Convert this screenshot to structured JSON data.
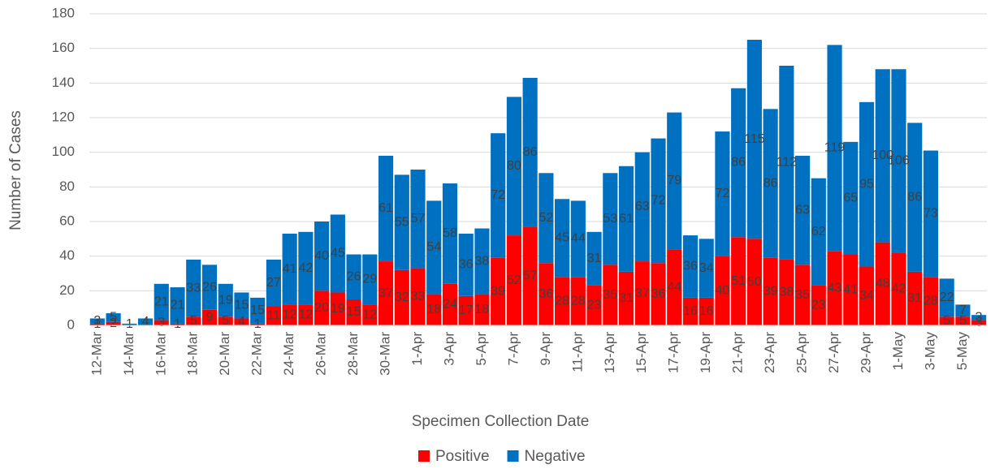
{
  "chart_data": {
    "type": "stacked_bar",
    "x_label": "Specimen Collection Date",
    "y_label": "Number of Cases",
    "categories": [
      "12-Mar",
      null,
      "14-Mar",
      null,
      "16-Mar",
      null,
      "18-Mar",
      null,
      "20-Mar",
      null,
      "22-Mar",
      null,
      "24-Mar",
      null,
      "26-Mar",
      null,
      "28-Mar",
      null,
      "30-Mar",
      null,
      "1-Apr",
      null,
      "3-Apr",
      null,
      "5-Apr",
      null,
      "7-Apr",
      null,
      "9-Apr",
      null,
      "11-Apr",
      null,
      "13-Apr",
      null,
      "15-Apr",
      null,
      "17-Apr",
      null,
      "19-Apr",
      null,
      "21-Apr",
      null,
      "23-Apr",
      null,
      "25-Apr",
      null,
      "27-Apr",
      null,
      "29-Apr",
      null,
      "1-May",
      null,
      "3-May",
      null,
      "5-May",
      null
    ],
    "series": [
      {
        "name": "Positive",
        "color": "#ff0000",
        "values": [
          1,
          2,
          0,
          0,
          3,
          1,
          5,
          9,
          5,
          4,
          1,
          11,
          12,
          12,
          20,
          19,
          15,
          12,
          37,
          32,
          33,
          18,
          24,
          17,
          18,
          39,
          52,
          57,
          36,
          28,
          28,
          23,
          35,
          31,
          37,
          36,
          44,
          16,
          16,
          40,
          51,
          50,
          39,
          38,
          35,
          23,
          43,
          41,
          34,
          48,
          42,
          31,
          28,
          5,
          5,
          3
        ]
      },
      {
        "name": "Negative",
        "color": "#0070c0",
        "values": [
          3,
          5,
          1,
          4,
          21,
          21,
          33,
          26,
          19,
          15,
          15,
          27,
          41,
          42,
          40,
          45,
          26,
          29,
          61,
          55,
          57,
          54,
          58,
          36,
          38,
          72,
          80,
          86,
          52,
          45,
          44,
          31,
          53,
          61,
          63,
          72,
          79,
          36,
          34,
          72,
          86,
          115,
          86,
          112,
          63,
          62,
          119,
          65,
          95,
          100,
          106,
          86,
          73,
          22,
          7,
          3
        ]
      }
    ],
    "ylim": [
      0,
      180
    ],
    "yticks": [
      0,
      20,
      40,
      60,
      80,
      100,
      120,
      140,
      160,
      180
    ],
    "grid": true,
    "legend": "bottom"
  }
}
